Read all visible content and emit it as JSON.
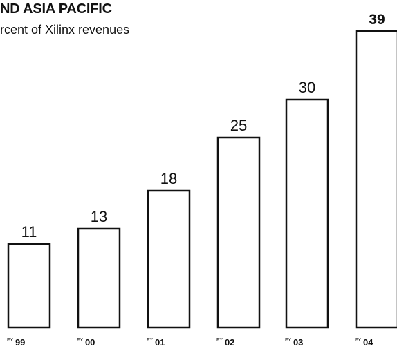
{
  "header": {
    "title": "ND ASIA PACIFIC",
    "subtitle": "rcent of Xilinx revenues"
  },
  "chart_data": {
    "type": "bar",
    "title": "ND ASIA PACIFIC",
    "subtitle": "rcent of Xilinx revenues",
    "categories": [
      {
        "prefix": "FY",
        "label": "99"
      },
      {
        "prefix": "FY",
        "label": "00"
      },
      {
        "prefix": "FY",
        "label": "01"
      },
      {
        "prefix": "FY",
        "label": "02"
      },
      {
        "prefix": "FY",
        "label": "03"
      },
      {
        "prefix": "FY",
        "label": "04"
      }
    ],
    "values": [
      11,
      13,
      18,
      25,
      30,
      39
    ],
    "value_labels": [
      "11",
      "13",
      "18",
      "25",
      "30",
      "39"
    ],
    "highlighted_index": 5,
    "ylim": [
      0,
      39
    ],
    "grid": false,
    "legend": "none",
    "colors": {
      "bar_fill": "#ffffff",
      "bar_stroke": "#111111"
    }
  }
}
